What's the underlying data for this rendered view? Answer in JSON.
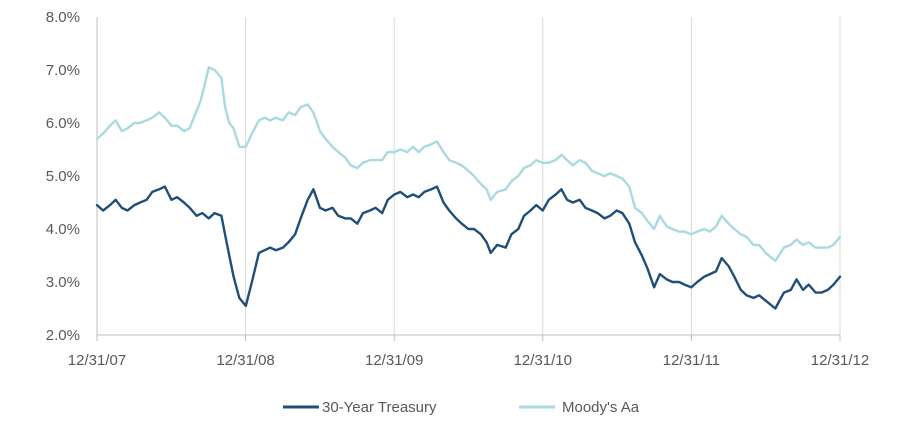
{
  "chart_data": {
    "type": "line",
    "title": "",
    "xlabel": "",
    "ylabel": "",
    "ylim": [
      0.02,
      0.08
    ],
    "xlim": [
      "2007-12-31",
      "2012-12-31"
    ],
    "x_ticks": [
      "12/31/07",
      "12/31/08",
      "12/31/09",
      "12/31/10",
      "12/31/11",
      "12/31/12"
    ],
    "y_ticks": [
      "2.0%",
      "3.0%",
      "4.0%",
      "5.0%",
      "6.0%",
      "7.0%",
      "8.0%"
    ],
    "grid": "vertical",
    "legend_position": "bottom",
    "series": [
      {
        "name": "30-Year Treasury",
        "color": "#1f4e79",
        "points": [
          [
            "2007-12-31",
            4.45
          ],
          [
            "2008-01-15",
            4.35
          ],
          [
            "2008-02-01",
            4.45
          ],
          [
            "2008-02-15",
            4.55
          ],
          [
            "2008-03-01",
            4.4
          ],
          [
            "2008-03-15",
            4.35
          ],
          [
            "2008-04-01",
            4.45
          ],
          [
            "2008-04-15",
            4.5
          ],
          [
            "2008-05-01",
            4.55
          ],
          [
            "2008-05-15",
            4.7
          ],
          [
            "2008-06-01",
            4.75
          ],
          [
            "2008-06-15",
            4.8
          ],
          [
            "2008-07-01",
            4.55
          ],
          [
            "2008-07-15",
            4.6
          ],
          [
            "2008-08-01",
            4.5
          ],
          [
            "2008-08-15",
            4.4
          ],
          [
            "2008-09-01",
            4.25
          ],
          [
            "2008-09-15",
            4.3
          ],
          [
            "2008-10-01",
            4.2
          ],
          [
            "2008-10-15",
            4.3
          ],
          [
            "2008-11-01",
            4.25
          ],
          [
            "2008-11-15",
            3.7
          ],
          [
            "2008-12-01",
            3.1
          ],
          [
            "2008-12-15",
            2.7
          ],
          [
            "2008-12-31",
            2.55
          ],
          [
            "2009-01-15",
            3.0
          ],
          [
            "2009-02-01",
            3.55
          ],
          [
            "2009-02-15",
            3.6
          ],
          [
            "2009-03-01",
            3.65
          ],
          [
            "2009-03-15",
            3.6
          ],
          [
            "2009-04-01",
            3.65
          ],
          [
            "2009-04-15",
            3.75
          ],
          [
            "2009-05-01",
            3.9
          ],
          [
            "2009-05-15",
            4.2
          ],
          [
            "2009-06-01",
            4.55
          ],
          [
            "2009-06-15",
            4.75
          ],
          [
            "2009-07-01",
            4.4
          ],
          [
            "2009-07-15",
            4.35
          ],
          [
            "2009-08-01",
            4.4
          ],
          [
            "2009-08-15",
            4.25
          ],
          [
            "2009-09-01",
            4.2
          ],
          [
            "2009-09-15",
            4.2
          ],
          [
            "2009-10-01",
            4.1
          ],
          [
            "2009-10-15",
            4.3
          ],
          [
            "2009-11-01",
            4.35
          ],
          [
            "2009-11-15",
            4.4
          ],
          [
            "2009-12-01",
            4.3
          ],
          [
            "2009-12-15",
            4.55
          ],
          [
            "2009-12-31",
            4.65
          ],
          [
            "2010-01-15",
            4.7
          ],
          [
            "2010-02-01",
            4.6
          ],
          [
            "2010-02-15",
            4.65
          ],
          [
            "2010-03-01",
            4.6
          ],
          [
            "2010-03-15",
            4.7
          ],
          [
            "2010-04-01",
            4.75
          ],
          [
            "2010-04-15",
            4.8
          ],
          [
            "2010-05-01",
            4.5
          ],
          [
            "2010-05-15",
            4.35
          ],
          [
            "2010-06-01",
            4.2
          ],
          [
            "2010-06-15",
            4.1
          ],
          [
            "2010-07-01",
            4.0
          ],
          [
            "2010-07-15",
            4.0
          ],
          [
            "2010-08-01",
            3.9
          ],
          [
            "2010-08-15",
            3.75
          ],
          [
            "2010-08-25",
            3.55
          ],
          [
            "2010-09-10",
            3.7
          ],
          [
            "2010-10-01",
            3.65
          ],
          [
            "2010-10-15",
            3.9
          ],
          [
            "2010-11-01",
            4.0
          ],
          [
            "2010-11-15",
            4.25
          ],
          [
            "2010-12-01",
            4.35
          ],
          [
            "2010-12-15",
            4.45
          ],
          [
            "2010-12-31",
            4.35
          ],
          [
            "2011-01-15",
            4.55
          ],
          [
            "2011-02-01",
            4.65
          ],
          [
            "2011-02-15",
            4.75
          ],
          [
            "2011-03-01",
            4.55
          ],
          [
            "2011-03-15",
            4.5
          ],
          [
            "2011-04-01",
            4.55
          ],
          [
            "2011-04-15",
            4.4
          ],
          [
            "2011-05-01",
            4.35
          ],
          [
            "2011-05-15",
            4.3
          ],
          [
            "2011-06-01",
            4.2
          ],
          [
            "2011-06-15",
            4.25
          ],
          [
            "2011-07-01",
            4.35
          ],
          [
            "2011-07-15",
            4.3
          ],
          [
            "2011-08-01",
            4.1
          ],
          [
            "2011-08-15",
            3.75
          ],
          [
            "2011-09-01",
            3.5
          ],
          [
            "2011-09-15",
            3.25
          ],
          [
            "2011-10-01",
            2.9
          ],
          [
            "2011-10-15",
            3.15
          ],
          [
            "2011-11-01",
            3.05
          ],
          [
            "2011-11-15",
            3.0
          ],
          [
            "2011-12-01",
            3.0
          ],
          [
            "2011-12-15",
            2.95
          ],
          [
            "2011-12-31",
            2.9
          ],
          [
            "2012-01-15",
            3.0
          ],
          [
            "2012-02-01",
            3.1
          ],
          [
            "2012-02-15",
            3.15
          ],
          [
            "2012-03-01",
            3.2
          ],
          [
            "2012-03-15",
            3.45
          ],
          [
            "2012-04-01",
            3.3
          ],
          [
            "2012-04-15",
            3.1
          ],
          [
            "2012-05-01",
            2.85
          ],
          [
            "2012-05-15",
            2.75
          ],
          [
            "2012-06-01",
            2.7
          ],
          [
            "2012-06-15",
            2.75
          ],
          [
            "2012-07-01",
            2.65
          ],
          [
            "2012-07-25",
            2.5
          ],
          [
            "2012-08-15",
            2.8
          ],
          [
            "2012-09-01",
            2.85
          ],
          [
            "2012-09-15",
            3.05
          ],
          [
            "2012-10-01",
            2.85
          ],
          [
            "2012-10-15",
            2.95
          ],
          [
            "2012-11-01",
            2.8
          ],
          [
            "2012-11-15",
            2.8
          ],
          [
            "2012-12-01",
            2.85
          ],
          [
            "2012-12-15",
            2.95
          ],
          [
            "2012-12-31",
            3.1
          ]
        ]
      },
      {
        "name": "Moody's Aa",
        "color": "#a8dadf",
        "points": [
          [
            "2007-12-31",
            5.7
          ],
          [
            "2008-01-15",
            5.8
          ],
          [
            "2008-02-01",
            5.95
          ],
          [
            "2008-02-15",
            6.05
          ],
          [
            "2008-03-01",
            5.85
          ],
          [
            "2008-03-15",
            5.9
          ],
          [
            "2008-04-01",
            6.0
          ],
          [
            "2008-04-15",
            6.0
          ],
          [
            "2008-05-01",
            6.05
          ],
          [
            "2008-05-15",
            6.1
          ],
          [
            "2008-06-01",
            6.2
          ],
          [
            "2008-06-15",
            6.1
          ],
          [
            "2008-07-01",
            5.95
          ],
          [
            "2008-07-15",
            5.95
          ],
          [
            "2008-08-01",
            5.85
          ],
          [
            "2008-08-15",
            5.9
          ],
          [
            "2008-08-25",
            6.1
          ],
          [
            "2008-09-10",
            6.4
          ],
          [
            "2008-09-20",
            6.7
          ],
          [
            "2008-10-01",
            7.05
          ],
          [
            "2008-10-15",
            7.0
          ],
          [
            "2008-11-01",
            6.85
          ],
          [
            "2008-11-10",
            6.3
          ],
          [
            "2008-11-20",
            6.0
          ],
          [
            "2008-12-01",
            5.9
          ],
          [
            "2008-12-15",
            5.55
          ],
          [
            "2008-12-31",
            5.55
          ],
          [
            "2009-01-15",
            5.8
          ],
          [
            "2009-02-01",
            6.05
          ],
          [
            "2009-02-15",
            6.1
          ],
          [
            "2009-03-01",
            6.05
          ],
          [
            "2009-03-15",
            6.1
          ],
          [
            "2009-04-01",
            6.05
          ],
          [
            "2009-04-15",
            6.2
          ],
          [
            "2009-05-01",
            6.15
          ],
          [
            "2009-05-15",
            6.3
          ],
          [
            "2009-06-01",
            6.35
          ],
          [
            "2009-06-15",
            6.2
          ],
          [
            "2009-07-01",
            5.85
          ],
          [
            "2009-07-15",
            5.7
          ],
          [
            "2009-08-01",
            5.55
          ],
          [
            "2009-08-15",
            5.45
          ],
          [
            "2009-09-01",
            5.35
          ],
          [
            "2009-09-15",
            5.2
          ],
          [
            "2009-10-01",
            5.15
          ],
          [
            "2009-10-15",
            5.25
          ],
          [
            "2009-11-01",
            5.3
          ],
          [
            "2009-11-15",
            5.3
          ],
          [
            "2009-12-01",
            5.3
          ],
          [
            "2009-12-15",
            5.45
          ],
          [
            "2009-12-31",
            5.45
          ],
          [
            "2010-01-15",
            5.5
          ],
          [
            "2010-02-01",
            5.45
          ],
          [
            "2010-02-15",
            5.55
          ],
          [
            "2010-03-01",
            5.45
          ],
          [
            "2010-03-15",
            5.55
          ],
          [
            "2010-04-01",
            5.6
          ],
          [
            "2010-04-15",
            5.65
          ],
          [
            "2010-05-01",
            5.45
          ],
          [
            "2010-05-15",
            5.3
          ],
          [
            "2010-06-01",
            5.25
          ],
          [
            "2010-06-15",
            5.2
          ],
          [
            "2010-07-01",
            5.1
          ],
          [
            "2010-07-15",
            5.0
          ],
          [
            "2010-08-01",
            4.85
          ],
          [
            "2010-08-15",
            4.75
          ],
          [
            "2010-08-25",
            4.55
          ],
          [
            "2010-09-10",
            4.7
          ],
          [
            "2010-10-01",
            4.75
          ],
          [
            "2010-10-15",
            4.9
          ],
          [
            "2010-11-01",
            5.0
          ],
          [
            "2010-11-15",
            5.15
          ],
          [
            "2010-12-01",
            5.2
          ],
          [
            "2010-12-15",
            5.3
          ],
          [
            "2010-12-31",
            5.25
          ],
          [
            "2011-01-15",
            5.25
          ],
          [
            "2011-02-01",
            5.3
          ],
          [
            "2011-02-15",
            5.4
          ],
          [
            "2011-03-01",
            5.3
          ],
          [
            "2011-03-15",
            5.2
          ],
          [
            "2011-04-01",
            5.3
          ],
          [
            "2011-04-15",
            5.25
          ],
          [
            "2011-05-01",
            5.1
          ],
          [
            "2011-05-15",
            5.05
          ],
          [
            "2011-06-01",
            5.0
          ],
          [
            "2011-06-15",
            5.05
          ],
          [
            "2011-07-01",
            5.0
          ],
          [
            "2011-07-15",
            4.95
          ],
          [
            "2011-08-01",
            4.8
          ],
          [
            "2011-08-15",
            4.4
          ],
          [
            "2011-09-01",
            4.3
          ],
          [
            "2011-09-15",
            4.15
          ],
          [
            "2011-10-01",
            4.0
          ],
          [
            "2011-10-15",
            4.25
          ],
          [
            "2011-11-01",
            4.05
          ],
          [
            "2011-11-15",
            4.0
          ],
          [
            "2011-12-01",
            3.95
          ],
          [
            "2011-12-15",
            3.95
          ],
          [
            "2011-12-31",
            3.9
          ],
          [
            "2012-01-15",
            3.95
          ],
          [
            "2012-02-01",
            4.0
          ],
          [
            "2012-02-15",
            3.95
          ],
          [
            "2012-03-01",
            4.05
          ],
          [
            "2012-03-15",
            4.25
          ],
          [
            "2012-04-01",
            4.1
          ],
          [
            "2012-04-15",
            4.0
          ],
          [
            "2012-05-01",
            3.9
          ],
          [
            "2012-05-15",
            3.85
          ],
          [
            "2012-06-01",
            3.7
          ],
          [
            "2012-06-15",
            3.7
          ],
          [
            "2012-07-01",
            3.55
          ],
          [
            "2012-07-25",
            3.4
          ],
          [
            "2012-08-15",
            3.65
          ],
          [
            "2012-09-01",
            3.7
          ],
          [
            "2012-09-15",
            3.8
          ],
          [
            "2012-10-01",
            3.7
          ],
          [
            "2012-10-15",
            3.75
          ],
          [
            "2012-11-01",
            3.65
          ],
          [
            "2012-11-15",
            3.65
          ],
          [
            "2012-12-01",
            3.65
          ],
          [
            "2012-12-15",
            3.7
          ],
          [
            "2012-12-31",
            3.85
          ]
        ]
      }
    ]
  }
}
